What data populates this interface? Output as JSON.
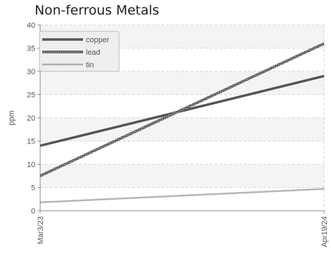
{
  "chart_data": {
    "type": "line",
    "title": "Non-ferrous Metals",
    "ylabel": "ppm",
    "xlabel": "",
    "x": [
      "Mar3/23",
      "Apr19/24"
    ],
    "ylim": [
      0,
      40
    ],
    "yticks": [
      0,
      5,
      10,
      15,
      20,
      25,
      30,
      35,
      40
    ],
    "grid": true,
    "legend_position": "top-left",
    "series": [
      {
        "name": "copper",
        "values": [
          14,
          29
        ],
        "color": "#555555",
        "style": "solid"
      },
      {
        "name": "lead",
        "values": [
          7.5,
          36
        ],
        "color": "#666666",
        "style": "dotted-thick"
      },
      {
        "name": "tin",
        "values": [
          1.8,
          4.7
        ],
        "color": "#777777",
        "style": "dotted-thin"
      }
    ]
  }
}
